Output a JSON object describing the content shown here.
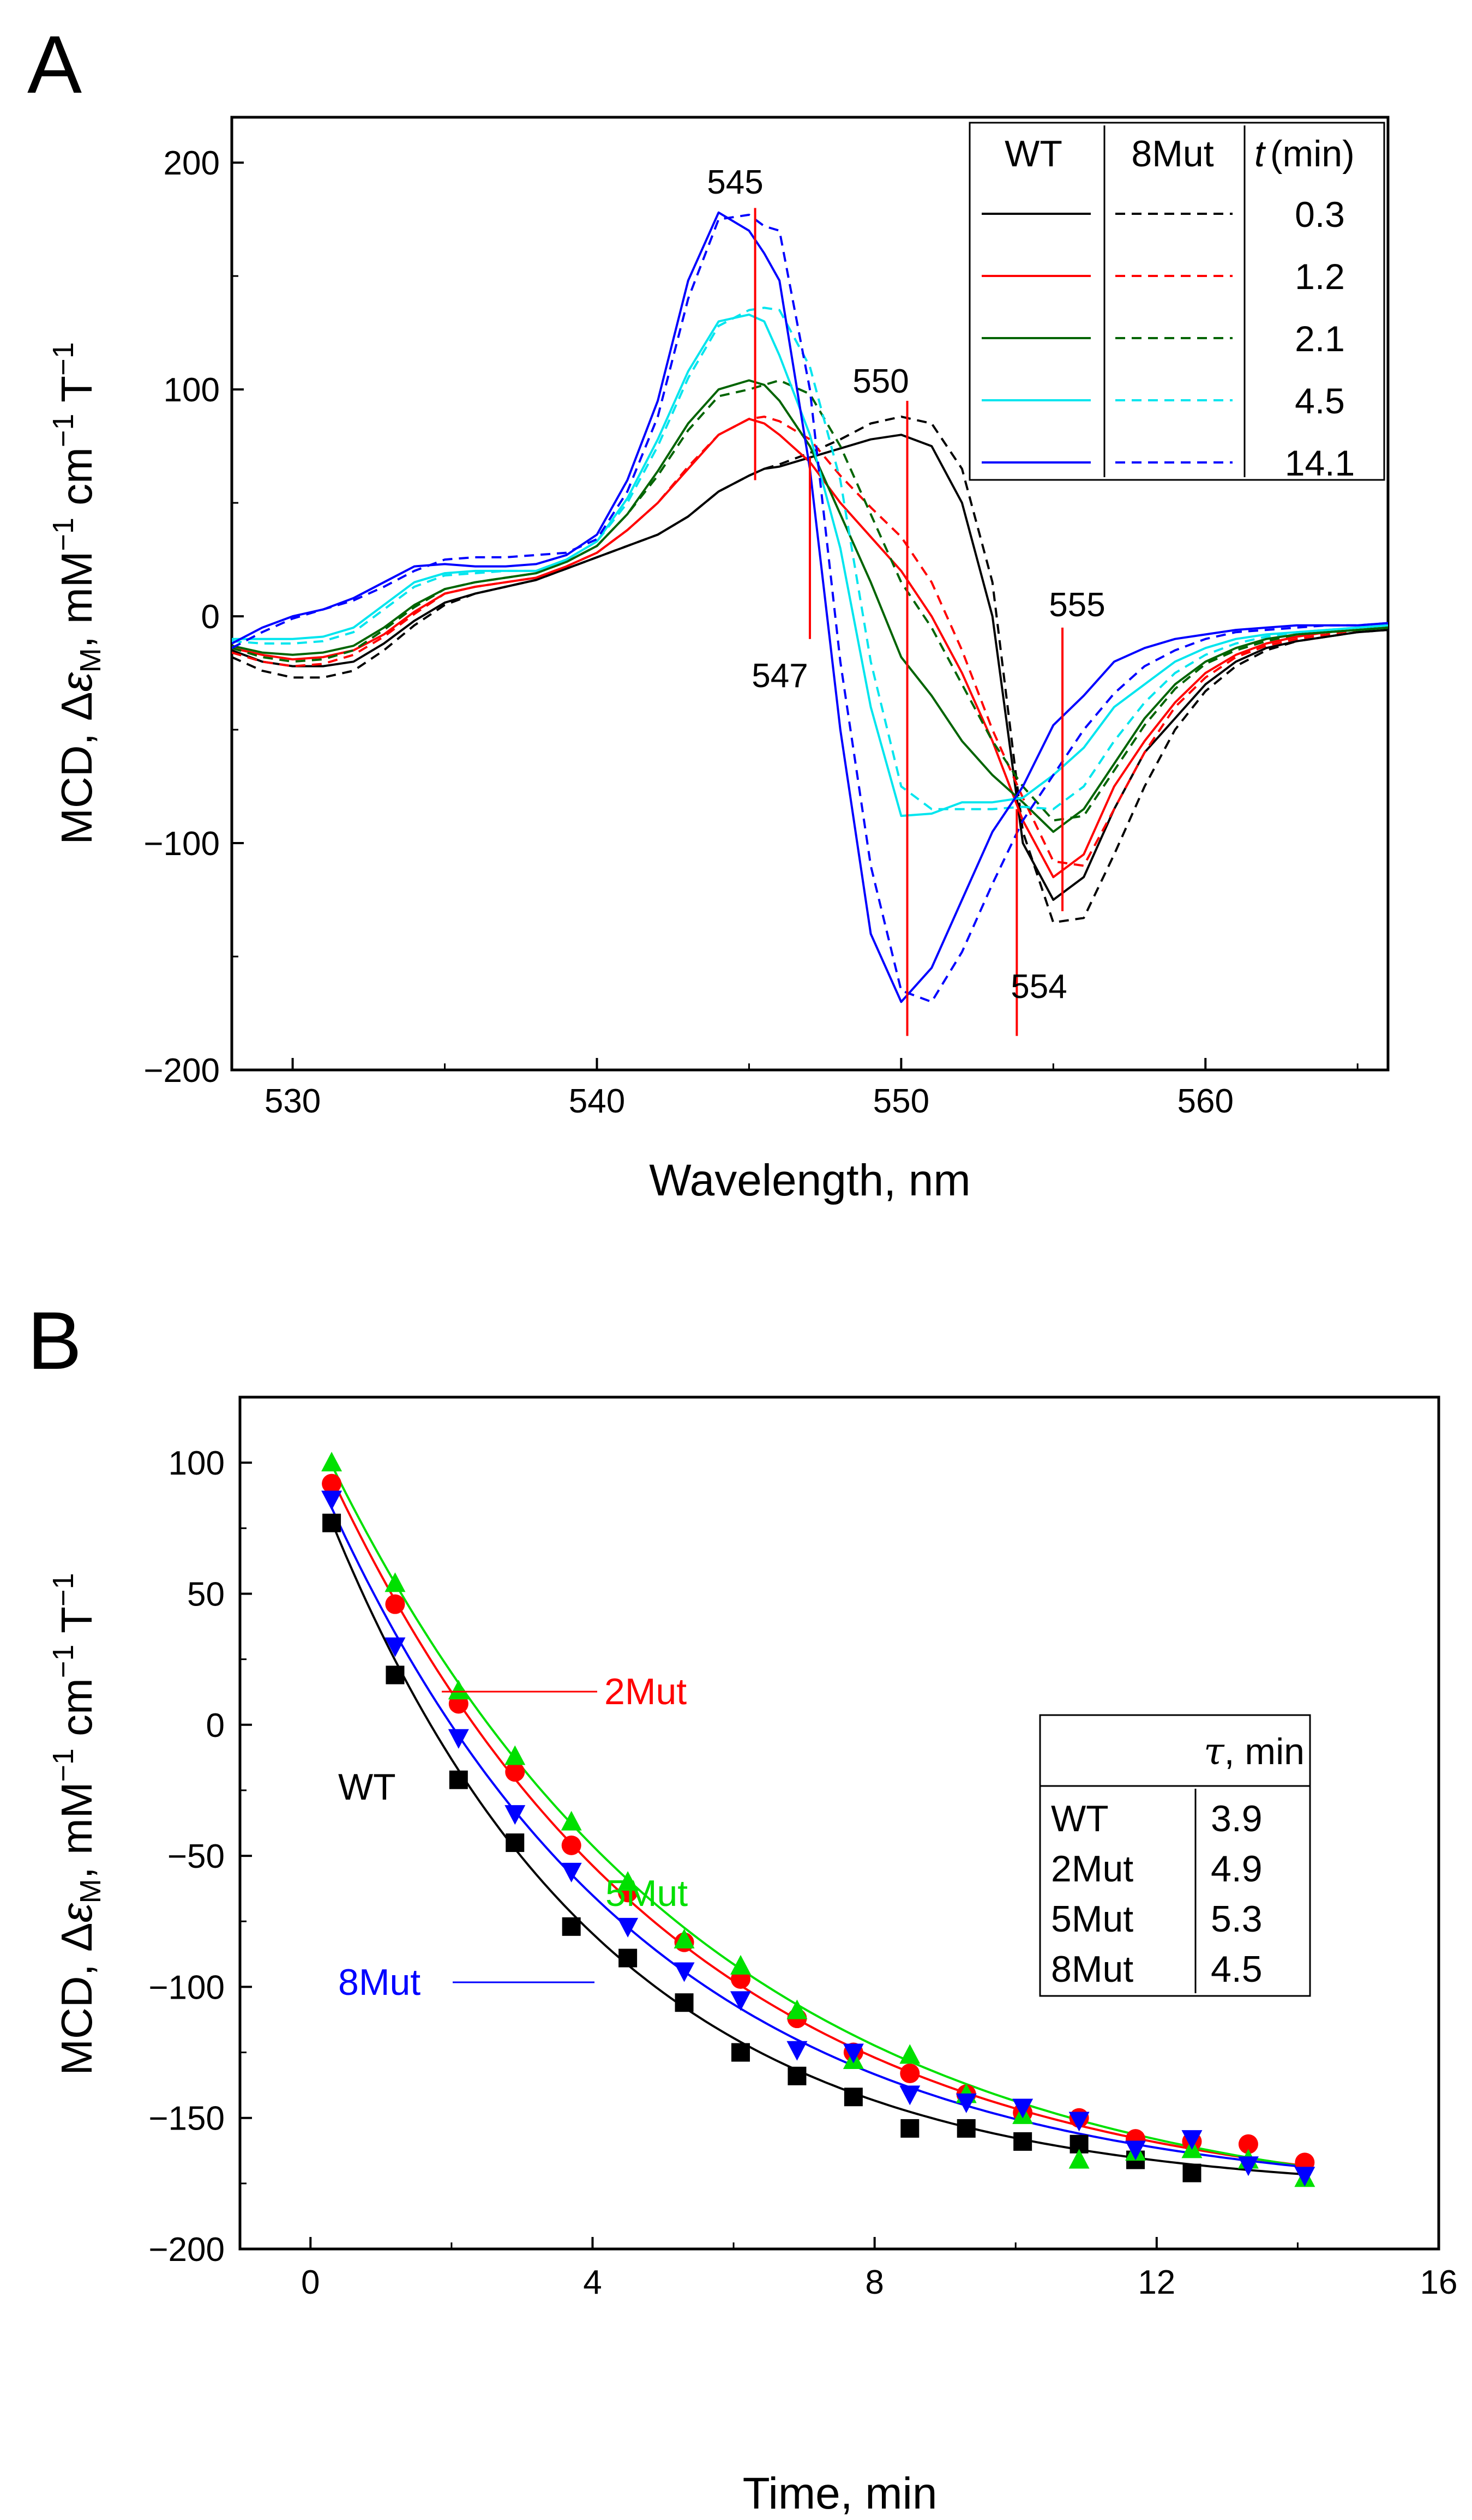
{
  "panels": {
    "A": {
      "label": "A",
      "ylabel_main": "MCD, Δ",
      "ylabel_eps": "ε",
      "ylabel_sub": "M",
      "ylabel_units": ", mM",
      "ylabel_cm": " cm",
      "ylabel_T": " T",
      "ylabel_exp": "−1",
      "annotations": [
        "545",
        "547",
        "550",
        "554",
        "555"
      ],
      "legend": {
        "headers": [
          "WT",
          "8Mut",
          "t",
          "(min)"
        ],
        "times": [
          "0.3",
          "1.2",
          "2.1",
          "4.5",
          "14.1"
        ]
      }
    },
    "B": {
      "label": "B",
      "ylabel_main": "MCD, Δ",
      "ylabel_eps": "ε",
      "ylabel_sub": "M",
      "ylabel_units": ", mM",
      "ylabel_cm": " cm",
      "ylabel_T": " T",
      "ylabel_exp": "−1",
      "curve_labels": [
        "WT",
        "2Mut",
        "5Mut",
        "8Mut"
      ],
      "table": {
        "header_sym": "τ",
        "header_unit": ", min",
        "rows": [
          {
            "name": "WT",
            "tau": "3.9"
          },
          {
            "name": "2Mut",
            "tau": "4.9"
          },
          {
            "name": "5Mut",
            "tau": "5.3"
          },
          {
            "name": "8Mut",
            "tau": "4.5"
          }
        ]
      }
    }
  },
  "colors": {
    "t0.3": "#000000",
    "t1.2": "#ff0000",
    "t2.1": "#006400",
    "t4.5": "#00e5ee",
    "t14.1": "#0000ff",
    "marker": "#ff0000",
    "WT": "#000000",
    "2Mut": "#ff0000",
    "5Mut": "#00e000",
    "8Mut": "#0000ff"
  },
  "chart_data": [
    {
      "type": "line",
      "title": "",
      "xlabel": "Wavelength, nm",
      "ylabel": "MCD, ΔεM, mM−1 cm−1 T−1",
      "xlim": [
        528,
        566
      ],
      "ylim": [
        -200,
        220
      ],
      "xticks": [
        530,
        540,
        550,
        560
      ],
      "yticks": [
        -200,
        -100,
        0,
        100,
        200
      ],
      "x": [
        528,
        529,
        530,
        531,
        532,
        533,
        534,
        535,
        536,
        537,
        538,
        539,
        540,
        541,
        542,
        543,
        544,
        545,
        545.5,
        546,
        547,
        548,
        549,
        550,
        551,
        552,
        553,
        554,
        555,
        556,
        557,
        558,
        559,
        560,
        561,
        562,
        563,
        564,
        565,
        566
      ],
      "series": [
        {
          "name": "WT 0.3",
          "time": "0.3",
          "variant": "WT",
          "style": "solid",
          "values": [
            -15,
            -20,
            -22,
            -22,
            -20,
            -12,
            -2,
            6,
            10,
            13,
            16,
            21,
            26,
            31,
            36,
            44,
            55,
            62,
            65,
            66,
            70,
            74,
            78,
            80,
            75,
            50,
            0,
            -100,
            -125,
            -115,
            -85,
            -60,
            -45,
            -30,
            -20,
            -14,
            -11,
            -9,
            -7,
            -6
          ]
        },
        {
          "name": "8Mut 0.3",
          "time": "0.3",
          "variant": "8Mut",
          "style": "dashed",
          "values": [
            -18,
            -24,
            -27,
            -27,
            -24,
            -15,
            -4,
            5,
            10,
            13,
            16,
            21,
            26,
            31,
            36,
            44,
            55,
            62,
            65,
            67,
            72,
            78,
            85,
            88,
            85,
            65,
            15,
            -95,
            -135,
            -133,
            -105,
            -75,
            -50,
            -33,
            -22,
            -15,
            -11,
            -9,
            -7,
            -6
          ]
        },
        {
          "name": "WT 1.2",
          "time": "1.2",
          "variant": "WT",
          "style": "solid",
          "values": [
            -14,
            -17,
            -19,
            -18,
            -15,
            -8,
            2,
            10,
            13,
            15,
            17,
            22,
            28,
            38,
            50,
            65,
            80,
            87,
            85,
            80,
            68,
            50,
            35,
            20,
            0,
            -25,
            -55,
            -90,
            -115,
            -105,
            -75,
            -55,
            -38,
            -25,
            -17,
            -12,
            -9,
            -7,
            -6,
            -5
          ]
        },
        {
          "name": "8Mut 1.2",
          "time": "1.2",
          "variant": "8Mut",
          "style": "dashed",
          "values": [
            -16,
            -20,
            -22,
            -21,
            -17,
            -9,
            1,
            10,
            13,
            15,
            17,
            22,
            28,
            38,
            50,
            66,
            80,
            87,
            88,
            86,
            78,
            62,
            48,
            35,
            15,
            -15,
            -50,
            -80,
            -108,
            -110,
            -85,
            -60,
            -40,
            -27,
            -18,
            -13,
            -10,
            -8,
            -6,
            -5
          ]
        },
        {
          "name": "WT 2.1",
          "time": "2.1",
          "variant": "WT",
          "style": "solid",
          "values": [
            -13,
            -16,
            -17,
            -16,
            -13,
            -5,
            5,
            12,
            15,
            17,
            19,
            24,
            31,
            45,
            64,
            85,
            100,
            104,
            102,
            95,
            75,
            45,
            15,
            -18,
            -35,
            -55,
            -70,
            -82,
            -95,
            -85,
            -65,
            -45,
            -30,
            -20,
            -14,
            -10,
            -8,
            -7,
            -6,
            -5
          ]
        },
        {
          "name": "8Mut 2.1",
          "time": "2.1",
          "variant": "8Mut",
          "style": "dashed",
          "values": [
            -14,
            -18,
            -20,
            -19,
            -15,
            -6,
            4,
            12,
            15,
            17,
            19,
            24,
            31,
            45,
            62,
            82,
            97,
            100,
            102,
            104,
            98,
            75,
            45,
            15,
            -5,
            -30,
            -55,
            -75,
            -90,
            -88,
            -68,
            -48,
            -32,
            -21,
            -15,
            -11,
            -8,
            -7,
            -6,
            -5
          ]
        },
        {
          "name": "WT 4.5",
          "time": "4.5",
          "variant": "WT",
          "style": "solid",
          "values": [
            -10,
            -10,
            -10,
            -9,
            -5,
            5,
            15,
            19,
            20,
            20,
            20,
            25,
            33,
            52,
            78,
            108,
            130,
            133,
            130,
            115,
            80,
            30,
            -40,
            -88,
            -87,
            -82,
            -82,
            -80,
            -70,
            -58,
            -40,
            -30,
            -20,
            -14,
            -10,
            -8,
            -7,
            -6,
            -5,
            -4
          ]
        },
        {
          "name": "8Mut 4.5",
          "time": "4.5",
          "variant": "8Mut",
          "style": "dashed",
          "values": [
            -11,
            -12,
            -12,
            -11,
            -7,
            3,
            13,
            18,
            19,
            20,
            20,
            25,
            33,
            50,
            75,
            105,
            128,
            135,
            136,
            135,
            110,
            60,
            -20,
            -75,
            -85,
            -85,
            -85,
            -84,
            -85,
            -75,
            -55,
            -38,
            -25,
            -17,
            -12,
            -9,
            -7,
            -6,
            -5,
            -4
          ]
        },
        {
          "name": "WT 14.1",
          "time": "14.1",
          "variant": "WT",
          "style": "solid",
          "values": [
            -12,
            -5,
            0,
            3,
            8,
            15,
            22,
            23,
            22,
            22,
            23,
            27,
            36,
            60,
            95,
            148,
            178,
            170,
            160,
            148,
            65,
            -50,
            -140,
            -170,
            -155,
            -125,
            -95,
            -75,
            -48,
            -35,
            -20,
            -14,
            -10,
            -8,
            -6,
            -5,
            -4,
            -4,
            -4,
            -3
          ]
        },
        {
          "name": "8Mut 14.1",
          "time": "14.1",
          "variant": "8Mut",
          "style": "dashed",
          "values": [
            -14,
            -7,
            -1,
            3,
            7,
            13,
            20,
            25,
            26,
            26,
            27,
            28,
            34,
            55,
            88,
            140,
            175,
            177,
            172,
            170,
            100,
            -20,
            -110,
            -165,
            -170,
            -148,
            -118,
            -90,
            -70,
            -50,
            -34,
            -22,
            -15,
            -10,
            -7,
            -6,
            -5,
            -4,
            -4,
            -3
          ]
        }
      ],
      "markers_x": [
        545.2,
        547.0,
        550.2,
        553.8,
        555.3
      ]
    },
    {
      "type": "scatter",
      "title": "",
      "xlabel": "Time, min",
      "ylabel": "MCD, ΔεM, mM−1 cm−1 T−1",
      "xlim": [
        -1,
        16
      ],
      "ylim": [
        -200,
        125
      ],
      "xticks": [
        0,
        4,
        8,
        12,
        16
      ],
      "yticks": [
        -200,
        -150,
        -100,
        -50,
        0,
        50,
        100
      ],
      "fit": "exponential decay: y = yinf + A·exp(−t/τ)",
      "series": [
        {
          "name": "WT",
          "marker": "square",
          "tau": 3.9,
          "fit_yinf": -179,
          "fit_A": 277,
          "x": [
            0.3,
            1.2,
            2.1,
            2.9,
            3.7,
            4.5,
            5.3,
            6.1,
            6.9,
            7.7,
            8.5,
            9.3,
            10.1,
            10.9,
            11.7,
            12.5
          ],
          "y": [
            77,
            19,
            -21,
            -45,
            -77,
            -89,
            -106,
            -125,
            -134,
            -142,
            -154,
            -154,
            -159,
            -160,
            -166,
            -171
          ]
        },
        {
          "name": "2Mut",
          "marker": "circle",
          "tau": 4.9,
          "fit_yinf": -185,
          "fit_A": 297,
          "x": [
            0.3,
            1.2,
            2.1,
            2.9,
            3.7,
            4.5,
            5.3,
            6.1,
            6.9,
            7.7,
            8.5,
            9.3,
            10.1,
            10.9,
            11.7,
            12.5,
            13.3,
            14.1
          ],
          "y": [
            92,
            46,
            8,
            -18,
            -46,
            -64,
            -83,
            -97,
            -112,
            -125,
            -133,
            -141,
            -148,
            -150,
            -158,
            -159,
            -160,
            -167
          ]
        },
        {
          "name": "5Mut",
          "marker": "triangle-up",
          "tau": 5.3,
          "fit_yinf": -190,
          "fit_A": 306,
          "x": [
            0.3,
            1.2,
            2.1,
            2.9,
            3.7,
            4.5,
            5.3,
            6.1,
            6.9,
            7.7,
            8.5,
            9.3,
            10.1,
            10.9,
            11.7,
            12.5,
            13.3,
            14.1
          ],
          "y": [
            100,
            54,
            13,
            -12,
            -37,
            -60,
            -82,
            -92,
            -109,
            -128,
            -126,
            -141,
            -149,
            -166,
            -163,
            -162,
            -166,
            -173
          ]
        },
        {
          "name": "8Mut",
          "marker": "triangle-down",
          "tau": 4.5,
          "fit_yinf": -181,
          "fit_A": 282,
          "x": [
            0.3,
            1.2,
            2.1,
            2.9,
            3.7,
            4.5,
            5.3,
            6.1,
            6.9,
            7.7,
            8.5,
            9.3,
            10.1,
            10.9,
            11.7,
            12.5,
            13.3,
            14.1
          ],
          "y": [
            86,
            30,
            -5,
            -34,
            -56,
            -77,
            -94,
            -105,
            -124,
            -125,
            -141,
            -144,
            -146,
            -151,
            -162,
            -158,
            -168,
            -172
          ]
        }
      ]
    }
  ]
}
